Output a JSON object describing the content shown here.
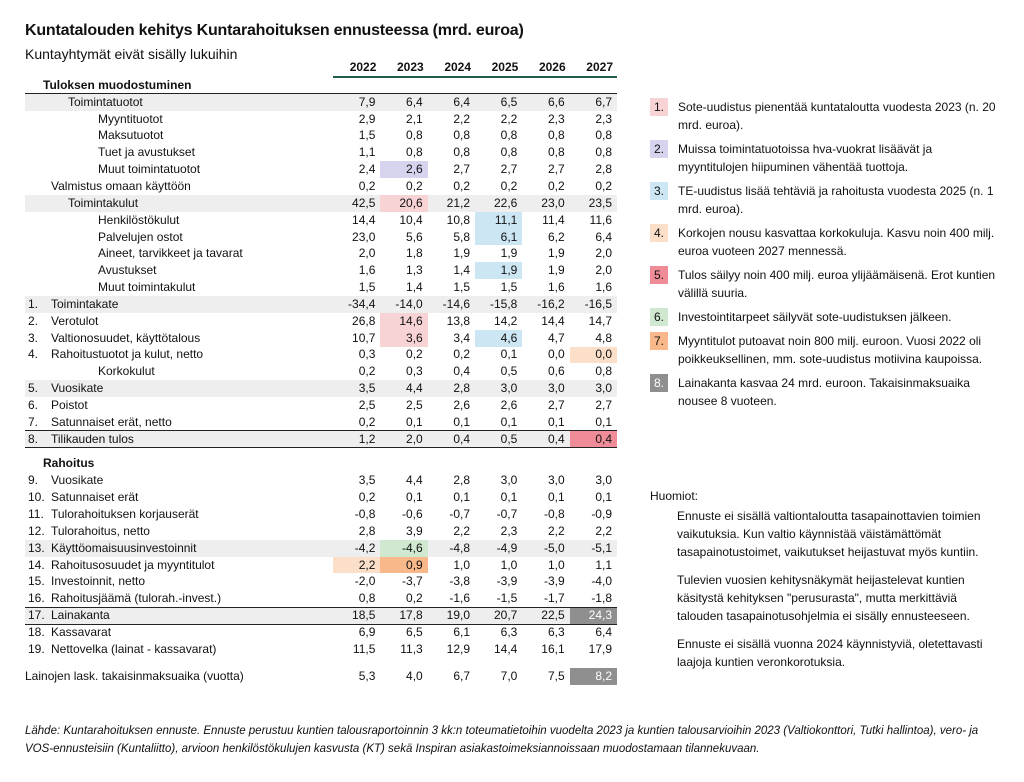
{
  "title": "Kuntatalouden kehitys Kuntarahoituksen ennusteessa (mrd. euroa)",
  "subtitle": "Kuntayhtymät eivät sisälly lukuihin",
  "years": [
    "2022",
    "2023",
    "2024",
    "2025",
    "2026",
    "2027"
  ],
  "section1": {
    "heading": "Tuloksen muodostuminen",
    "rows": [
      {
        "num": "",
        "label": "Toimintatuotot",
        "indent": 1,
        "shade": true,
        "values": [
          "7,9",
          "6,4",
          "6,4",
          "6,5",
          "6,6",
          "6,7"
        ]
      },
      {
        "num": "",
        "label": "Myyntituotot",
        "indent": 2,
        "values": [
          "2,9",
          "2,1",
          "2,2",
          "2,2",
          "2,3",
          "2,3"
        ]
      },
      {
        "num": "",
        "label": "Maksutuotot",
        "indent": 2,
        "values": [
          "1,5",
          "0,8",
          "0,8",
          "0,8",
          "0,8",
          "0,8"
        ]
      },
      {
        "num": "",
        "label": "Tuet ja avustukset",
        "indent": 2,
        "values": [
          "1,1",
          "0,8",
          "0,8",
          "0,8",
          "0,8",
          "0,8"
        ]
      },
      {
        "num": "",
        "label": "Muut toimintatuotot",
        "indent": 2,
        "values": [
          "2,4",
          "2,6",
          "2,7",
          "2,7",
          "2,7",
          "2,8"
        ],
        "hl": {
          "1": "purple"
        }
      },
      {
        "num": "",
        "label": "Valmistus omaan käyttöön",
        "indent": 0,
        "values": [
          "0,2",
          "0,2",
          "0,2",
          "0,2",
          "0,2",
          "0,2"
        ]
      },
      {
        "num": "",
        "label": "Toimintakulut",
        "indent": 1,
        "shade": true,
        "values": [
          "42,5",
          "20,6",
          "21,2",
          "22,6",
          "23,0",
          "23,5"
        ],
        "hl": {
          "1": "pink"
        }
      },
      {
        "num": "",
        "label": "Henkilöstökulut",
        "indent": 2,
        "values": [
          "14,4",
          "10,4",
          "10,8",
          "11,1",
          "11,4",
          "11,6"
        ],
        "hl": {
          "3": "blue"
        }
      },
      {
        "num": "",
        "label": "Palvelujen ostot",
        "indent": 2,
        "values": [
          "23,0",
          "5,6",
          "5,8",
          "6,1",
          "6,2",
          "6,4"
        ],
        "hl": {
          "3": "blue"
        }
      },
      {
        "num": "",
        "label": "Aineet, tarvikkeet ja tavarat",
        "indent": 2,
        "values": [
          "2,0",
          "1,8",
          "1,9",
          "1,9",
          "1,9",
          "2,0"
        ]
      },
      {
        "num": "",
        "label": "Avustukset",
        "indent": 2,
        "values": [
          "1,6",
          "1,3",
          "1,4",
          "1,9",
          "1,9",
          "2,0"
        ],
        "hl": {
          "3": "blue"
        }
      },
      {
        "num": "",
        "label": "Muut toimintakulut",
        "indent": 2,
        "values": [
          "1,5",
          "1,4",
          "1,5",
          "1,5",
          "1,6",
          "1,6"
        ]
      },
      {
        "num": "1.",
        "label": "Toimintakate",
        "indent": 0,
        "shade": true,
        "values": [
          "-34,4",
          "-14,0",
          "-14,6",
          "-15,8",
          "-16,2",
          "-16,5"
        ]
      },
      {
        "num": "2.",
        "label": "Verotulot",
        "indent": 0,
        "values": [
          "26,8",
          "14,6",
          "13,8",
          "14,2",
          "14,4",
          "14,7"
        ],
        "hl": {
          "1": "pink"
        }
      },
      {
        "num": "3.",
        "label": "Valtionosuudet, käyttötalous",
        "indent": 0,
        "values": [
          "10,7",
          "3,6",
          "3,4",
          "4,6",
          "4,7",
          "4,8"
        ],
        "hl": {
          "1": "pink",
          "3": "blue"
        }
      },
      {
        "num": "4.",
        "label": "Rahoitustuotot ja kulut, netto",
        "indent": 0,
        "values": [
          "0,3",
          "0,2",
          "0,2",
          "0,1",
          "0,0",
          "0,0"
        ],
        "hl": {
          "5": "peach"
        }
      },
      {
        "num": "",
        "label": "Korkokulut",
        "indent": 2,
        "values": [
          "0,2",
          "0,3",
          "0,4",
          "0,5",
          "0,6",
          "0,8"
        ]
      },
      {
        "num": "5.",
        "label": "Vuosikate",
        "indent": 0,
        "shade": true,
        "values": [
          "3,5",
          "4,4",
          "2,8",
          "3,0",
          "3,0",
          "3,0"
        ]
      },
      {
        "num": "6.",
        "label": "Poistot",
        "indent": 0,
        "values": [
          "2,5",
          "2,5",
          "2,6",
          "2,6",
          "2,7",
          "2,7"
        ]
      },
      {
        "num": "7.",
        "label": "Satunnaiset erät, netto",
        "indent": 0,
        "values": [
          "0,2",
          "0,1",
          "0,1",
          "0,1",
          "0,1",
          "0,1"
        ]
      },
      {
        "num": "8.",
        "label": "Tilikauden tulos",
        "indent": 0,
        "shade": true,
        "total": true,
        "values": [
          "1,2",
          "2,0",
          "0,4",
          "0,5",
          "0,4",
          "0,4"
        ],
        "hl": {
          "5": "red"
        }
      }
    ]
  },
  "section2": {
    "heading": "Rahoitus",
    "rows": [
      {
        "num": "9.",
        "label": "Vuosikate",
        "indent": 0,
        "values": [
          "3,5",
          "4,4",
          "2,8",
          "3,0",
          "3,0",
          "3,0"
        ]
      },
      {
        "num": "10.",
        "label": "Satunnaiset erät",
        "indent": 0,
        "values": [
          "0,2",
          "0,1",
          "0,1",
          "0,1",
          "0,1",
          "0,1"
        ]
      },
      {
        "num": "11.",
        "label": "Tulorahoituksen korjauserät",
        "indent": 0,
        "values": [
          "-0,8",
          "-0,6",
          "-0,7",
          "-0,7",
          "-0,8",
          "-0,9"
        ]
      },
      {
        "num": "12.",
        "label": "Tulorahoitus, netto",
        "indent": 0,
        "values": [
          "2,8",
          "3,9",
          "2,2",
          "2,3",
          "2,2",
          "2,2"
        ]
      },
      {
        "num": "13.",
        "label": "Käyttöomaisuusinvestoinnit",
        "indent": 0,
        "shade": true,
        "values": [
          "-4,2",
          "-4,6",
          "-4,8",
          "-4,9",
          "-5,0",
          "-5,1"
        ],
        "hl": {
          "1": "green"
        }
      },
      {
        "num": "14.",
        "label": "Rahoitusosuudet ja myyntitulot",
        "indent": 0,
        "values": [
          "2,2",
          "0,9",
          "1,0",
          "1,0",
          "1,0",
          "1,1"
        ],
        "hl": {
          "0": "peach",
          "1": "orange"
        }
      },
      {
        "num": "15.",
        "label": "Investoinnit, netto",
        "indent": 0,
        "values": [
          "-2,0",
          "-3,7",
          "-3,8",
          "-3,9",
          "-3,9",
          "-4,0"
        ]
      },
      {
        "num": "16.",
        "label": "Rahoitusjäämä (tulorah.-invest.)",
        "indent": 0,
        "values": [
          "0,8",
          "0,2",
          "-1,6",
          "-1,5",
          "-1,7",
          "-1,8"
        ]
      },
      {
        "num": "17.",
        "label": "Lainakanta",
        "indent": 0,
        "shade": true,
        "total": true,
        "values": [
          "18,5",
          "17,8",
          "19,0",
          "20,7",
          "22,5",
          "24,3"
        ],
        "hl": {
          "5": "gray"
        }
      },
      {
        "num": "18.",
        "label": "Kassavarat",
        "indent": 0,
        "values": [
          "6,9",
          "6,5",
          "6,1",
          "6,3",
          "6,3",
          "6,4"
        ]
      },
      {
        "num": "19.",
        "label": "Nettovelka (lainat - kassavarat)",
        "indent": 0,
        "values": [
          "11,5",
          "11,3",
          "12,9",
          "14,4",
          "16,1",
          "17,9"
        ]
      }
    ]
  },
  "last_row": {
    "num": "",
    "label": "Lainojen lask. takaisinmaksuaika (vuotta)",
    "values": [
      "5,3",
      "4,0",
      "6,7",
      "7,0",
      "7,5",
      "8,2"
    ],
    "hl": {
      "5": "gray"
    }
  },
  "notes": [
    {
      "n": "1.",
      "color": "pink",
      "text": "Sote-uudistus pienentää kuntataloutta vuodesta 2023 (n. 20 mrd. euroa)."
    },
    {
      "n": "2.",
      "color": "purple",
      "text": "Muissa toimintatuotoissa hva-vuokrat lisäävät ja myyntitulojen hiipuminen vähentää tuottoja."
    },
    {
      "n": "3.",
      "color": "blue",
      "text": "TE-uudistus lisää tehtäviä ja rahoitusta vuodesta 2025 (n. 1 mrd. euroa)."
    },
    {
      "n": "4.",
      "color": "peach",
      "text": "Korkojen nousu kasvattaa korkokuluja. Kasvu noin 400 milj. euroa vuoteen 2027 mennessä."
    },
    {
      "n": "5.",
      "color": "red",
      "text": "Tulos säilyy noin 400 milj. euroa ylijäämäisenä. Erot kuntien välillä suuria."
    },
    {
      "n": "6.",
      "color": "green",
      "text": "Investointitarpeet säilyvät sote-uudistuksen jälkeen."
    },
    {
      "n": "7.",
      "color": "orange",
      "text": "Myyntitulot putoavat noin 800 milj. euroon. Vuosi 2022 oli poikkeuksellinen, mm. sote-uudistus motiivina kaupoissa."
    },
    {
      "n": "8.",
      "color": "gray",
      "text": "Lainakanta kasvaa 24 mrd. euroon. Takaisinmaksuaika nousee 8 vuoteen."
    }
  ],
  "remarks": {
    "heading": "Huomiot:",
    "paragraphs": [
      "Ennuste ei sisällä valtiontaloutta tasapainottavien toimien vaikutuksia. Kun valtio käynnistää väistämättömät tasapainotustoimet, vaikutukset heijastuvat myös kuntiin.",
      "Tulevien vuosien kehitysnäkymät heijastelevat kuntien käsitystä kehityksen \"perusurasta\", mutta merkittäviä talouden tasapainotusohjelmia ei sisälly ennusteeseen.",
      "Ennuste ei sisällä vuonna 2024 käynnistyviä, oletettavasti laajoja kuntien veronkorotuksia."
    ]
  },
  "source": "Lähde: Kuntarahoituksen ennuste. Ennuste perustuu kuntien talousraportoinnin 3 kk:n toteumatietoihin vuodelta 2023 ja kuntien talousarvioihin 2023 (Valtiokonttori, Tutki hallintoa), vero- ja VOS-ennusteisiin (Kuntaliitto), arvioon henkilöstökulujen kasvusta (KT) sekä Inspiran asiakastoimeksiannoissaan muodostamaan tilannekuvaan."
}
